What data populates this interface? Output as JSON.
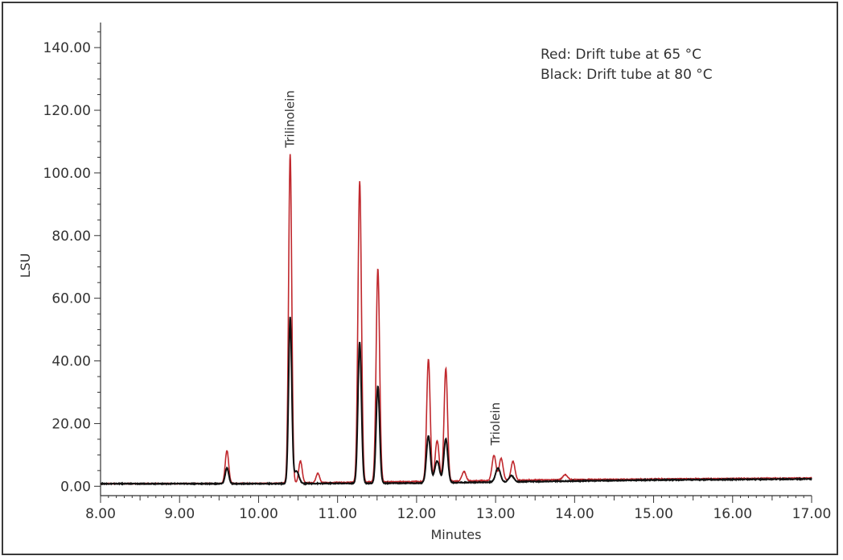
{
  "chart_data": {
    "type": "line",
    "xlabel": "Minutes",
    "ylabel": "LSU",
    "xlim": [
      8.0,
      17.0
    ],
    "ylim": [
      -3,
      148
    ],
    "x_ticks": [
      "8.00",
      "9.00",
      "10.00",
      "11.00",
      "12.00",
      "13.00",
      "14.00",
      "15.00",
      "16.00",
      "17.00"
    ],
    "y_ticks": [
      "0.00",
      "20.00",
      "40.00",
      "60.00",
      "80.00",
      "100.00",
      "120.00",
      "140.00"
    ],
    "x_tick_values": [
      8,
      9,
      10,
      11,
      12,
      13,
      14,
      15,
      16,
      17
    ],
    "y_tick_values": [
      0,
      20,
      40,
      60,
      80,
      100,
      120,
      140
    ],
    "legend": {
      "position": "top-right",
      "lines": [
        "Red: Drift tube at 65 °C",
        "Black: Drift tube at 80 °C"
      ]
    },
    "annotations": [
      {
        "text": "Trilinolein",
        "x": 10.4,
        "y": 106
      },
      {
        "text": "Triolein",
        "x": 13.0,
        "y": 11
      }
    ],
    "series": [
      {
        "color": "#c0282d",
        "baseline": [
          [
            8.0,
            0.8
          ],
          [
            10.0,
            0.9
          ],
          [
            12.0,
            1.5
          ],
          [
            13.5,
            2.0
          ],
          [
            15.0,
            2.3
          ],
          [
            17.0,
            2.6
          ]
        ],
        "peaks": [
          {
            "x": 9.6,
            "h": 10.5,
            "w": 0.022
          },
          {
            "x": 10.4,
            "h": 105.0,
            "w": 0.02
          },
          {
            "x": 10.53,
            "h": 7.0,
            "w": 0.022
          },
          {
            "x": 10.75,
            "h": 3.0,
            "w": 0.022
          },
          {
            "x": 11.28,
            "h": 96.0,
            "w": 0.022
          },
          {
            "x": 11.51,
            "h": 68.0,
            "w": 0.022
          },
          {
            "x": 12.15,
            "h": 39.0,
            "w": 0.022
          },
          {
            "x": 12.26,
            "h": 13.0,
            "w": 0.025
          },
          {
            "x": 12.37,
            "h": 36.0,
            "w": 0.022
          },
          {
            "x": 12.6,
            "h": 3.0,
            "w": 0.025
          },
          {
            "x": 12.98,
            "h": 8.0,
            "w": 0.025
          },
          {
            "x": 13.07,
            "h": 7.0,
            "w": 0.025
          },
          {
            "x": 13.22,
            "h": 6.0,
            "w": 0.025
          },
          {
            "x": 13.88,
            "h": 1.6,
            "w": 0.03
          }
        ]
      },
      {
        "color": "#111111",
        "baseline": [
          [
            8.0,
            0.8
          ],
          [
            10.0,
            0.8
          ],
          [
            12.0,
            1.0
          ],
          [
            13.5,
            1.5
          ],
          [
            15.0,
            2.0
          ],
          [
            17.0,
            2.3
          ]
        ],
        "peaks": [
          {
            "x": 9.6,
            "h": 5.0,
            "w": 0.022
          },
          {
            "x": 10.4,
            "h": 53.0,
            "w": 0.02
          },
          {
            "x": 10.48,
            "h": 4.0,
            "w": 0.03
          },
          {
            "x": 11.28,
            "h": 45.0,
            "w": 0.022
          },
          {
            "x": 11.51,
            "h": 31.0,
            "w": 0.022
          },
          {
            "x": 12.15,
            "h": 15.0,
            "w": 0.025
          },
          {
            "x": 12.26,
            "h": 7.0,
            "w": 0.03
          },
          {
            "x": 12.37,
            "h": 14.0,
            "w": 0.025
          },
          {
            "x": 13.03,
            "h": 4.5,
            "w": 0.03
          },
          {
            "x": 13.2,
            "h": 2.0,
            "w": 0.03
          }
        ]
      }
    ]
  }
}
